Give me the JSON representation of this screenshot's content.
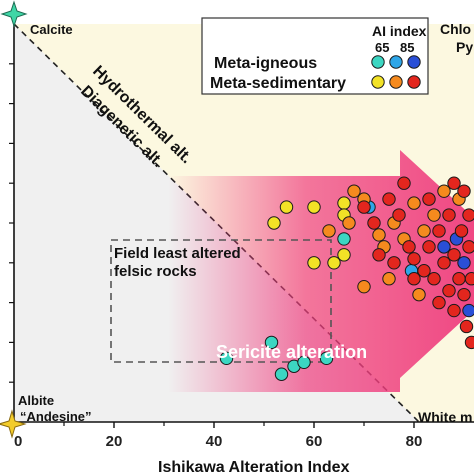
{
  "chart_data": {
    "type": "scatter",
    "xlabel": "Ishikawa Alteration Index",
    "x_ticks": [
      "0",
      "20",
      "40",
      "60",
      "80"
    ],
    "xlim": [
      0,
      92
    ],
    "ylim": [
      0,
      100
    ],
    "legend": {
      "title": "AI index",
      "sub_labels": [
        "65",
        "85"
      ],
      "placement": "top-right",
      "items": [
        {
          "label": "Meta-igneous",
          "colors": [
            "#3cd6c2",
            "#2ea6e8",
            "#2a4fd6"
          ]
        },
        {
          "label": "Meta-sedimentary",
          "colors": [
            "#f2e226",
            "#f58a1e",
            "#e3261e"
          ]
        }
      ]
    },
    "annotations": {
      "calcite": "Calcite",
      "albite": "Albite",
      "andesine": "“Andesine”",
      "chlorite_partial": "Chlo",
      "pyrite_partial": "Py",
      "white_mica_partial": "White m",
      "hydrothermal": "Hydrothermal alt.",
      "diagenetic": "Diagenetic alt.",
      "field_box_line1": "Field least altered",
      "field_box_line2": "felsic rocks",
      "sericite": "Sericite alteration"
    },
    "colors": {
      "upper_region": "#fcf8e0",
      "lower_region": "#f0f0f0",
      "arrow": "#ef3e7e",
      "calcite_star": "#3fd6a6",
      "albite_star": "#f3cc2a"
    },
    "series": [
      {
        "name": "Meta-igneous",
        "points": [
          {
            "x": 42.5,
            "y": 16,
            "c": "#3cd6c2"
          },
          {
            "x": 51.5,
            "y": 20,
            "c": "#3cd6c2"
          },
          {
            "x": 53.5,
            "y": 12,
            "c": "#3cd6c2"
          },
          {
            "x": 56,
            "y": 14,
            "c": "#3cd6c2"
          },
          {
            "x": 58,
            "y": 15,
            "c": "#3cd6c2"
          },
          {
            "x": 62.5,
            "y": 16,
            "c": "#3cd6c2"
          },
          {
            "x": 66,
            "y": 46,
            "c": "#3cd6c2"
          },
          {
            "x": 71,
            "y": 54,
            "c": "#2ea6e8"
          },
          {
            "x": 79.5,
            "y": 38,
            "c": "#2ea6e8"
          },
          {
            "x": 86,
            "y": 44,
            "c": "#2a4fd6"
          },
          {
            "x": 88.5,
            "y": 46,
            "c": "#2a4fd6"
          },
          {
            "x": 90,
            "y": 40,
            "c": "#2a4fd6"
          },
          {
            "x": 91,
            "y": 28,
            "c": "#2a4fd6"
          }
        ]
      },
      {
        "name": "Meta-sedimentary",
        "points": [
          {
            "x": 52,
            "y": 50,
            "c": "#f2e226"
          },
          {
            "x": 54.5,
            "y": 54,
            "c": "#f2e226"
          },
          {
            "x": 60,
            "y": 54,
            "c": "#f2e226"
          },
          {
            "x": 66,
            "y": 55,
            "c": "#f2e226"
          },
          {
            "x": 66,
            "y": 52,
            "c": "#f2e226"
          },
          {
            "x": 60,
            "y": 40,
            "c": "#f2e226"
          },
          {
            "x": 64,
            "y": 40,
            "c": "#f2e226"
          },
          {
            "x": 66,
            "y": 42,
            "c": "#f2e226"
          },
          {
            "x": 63,
            "y": 48,
            "c": "#f58a1e"
          },
          {
            "x": 67,
            "y": 50,
            "c": "#f58a1e"
          },
          {
            "x": 68,
            "y": 58,
            "c": "#f58a1e"
          },
          {
            "x": 70,
            "y": 56,
            "c": "#f58a1e"
          },
          {
            "x": 73,
            "y": 47,
            "c": "#f58a1e"
          },
          {
            "x": 74,
            "y": 44,
            "c": "#f58a1e"
          },
          {
            "x": 76,
            "y": 50,
            "c": "#f58a1e"
          },
          {
            "x": 78,
            "y": 46,
            "c": "#f58a1e"
          },
          {
            "x": 80,
            "y": 55,
            "c": "#f58a1e"
          },
          {
            "x": 82,
            "y": 48,
            "c": "#f58a1e"
          },
          {
            "x": 84,
            "y": 52,
            "c": "#f58a1e"
          },
          {
            "x": 86,
            "y": 58,
            "c": "#f58a1e"
          },
          {
            "x": 89,
            "y": 56,
            "c": "#f58a1e"
          },
          {
            "x": 70,
            "y": 34,
            "c": "#f58a1e"
          },
          {
            "x": 75,
            "y": 36,
            "c": "#f58a1e"
          },
          {
            "x": 81,
            "y": 32,
            "c": "#f58a1e"
          },
          {
            "x": 70,
            "y": 54,
            "c": "#e3261e"
          },
          {
            "x": 72,
            "y": 50,
            "c": "#e3261e"
          },
          {
            "x": 75,
            "y": 56,
            "c": "#e3261e"
          },
          {
            "x": 77,
            "y": 52,
            "c": "#e3261e"
          },
          {
            "x": 79,
            "y": 44,
            "c": "#e3261e"
          },
          {
            "x": 80,
            "y": 41,
            "c": "#e3261e"
          },
          {
            "x": 82,
            "y": 38,
            "c": "#e3261e"
          },
          {
            "x": 83,
            "y": 44,
            "c": "#e3261e"
          },
          {
            "x": 84,
            "y": 36,
            "c": "#e3261e"
          },
          {
            "x": 85,
            "y": 48,
            "c": "#e3261e"
          },
          {
            "x": 86,
            "y": 40,
            "c": "#e3261e"
          },
          {
            "x": 87,
            "y": 33,
            "c": "#e3261e"
          },
          {
            "x": 87,
            "y": 52,
            "c": "#e3261e"
          },
          {
            "x": 88,
            "y": 42,
            "c": "#e3261e"
          },
          {
            "x": 88,
            "y": 28,
            "c": "#e3261e"
          },
          {
            "x": 89,
            "y": 36,
            "c": "#e3261e"
          },
          {
            "x": 89.5,
            "y": 48,
            "c": "#e3261e"
          },
          {
            "x": 90,
            "y": 32,
            "c": "#e3261e"
          },
          {
            "x": 90.5,
            "y": 24,
            "c": "#e3261e"
          },
          {
            "x": 91,
            "y": 44,
            "c": "#e3261e"
          },
          {
            "x": 91,
            "y": 52,
            "c": "#e3261e"
          },
          {
            "x": 91.5,
            "y": 36,
            "c": "#e3261e"
          },
          {
            "x": 91.5,
            "y": 20,
            "c": "#e3261e"
          },
          {
            "x": 83,
            "y": 56,
            "c": "#e3261e"
          },
          {
            "x": 78,
            "y": 60,
            "c": "#e3261e"
          },
          {
            "x": 73,
            "y": 42,
            "c": "#e3261e"
          },
          {
            "x": 80,
            "y": 36,
            "c": "#e3261e"
          },
          {
            "x": 85,
            "y": 30,
            "c": "#e3261e"
          },
          {
            "x": 88,
            "y": 60,
            "c": "#e3261e"
          },
          {
            "x": 76,
            "y": 40,
            "c": "#e3261e"
          },
          {
            "x": 90,
            "y": 58,
            "c": "#e3261e"
          }
        ]
      }
    ]
  }
}
